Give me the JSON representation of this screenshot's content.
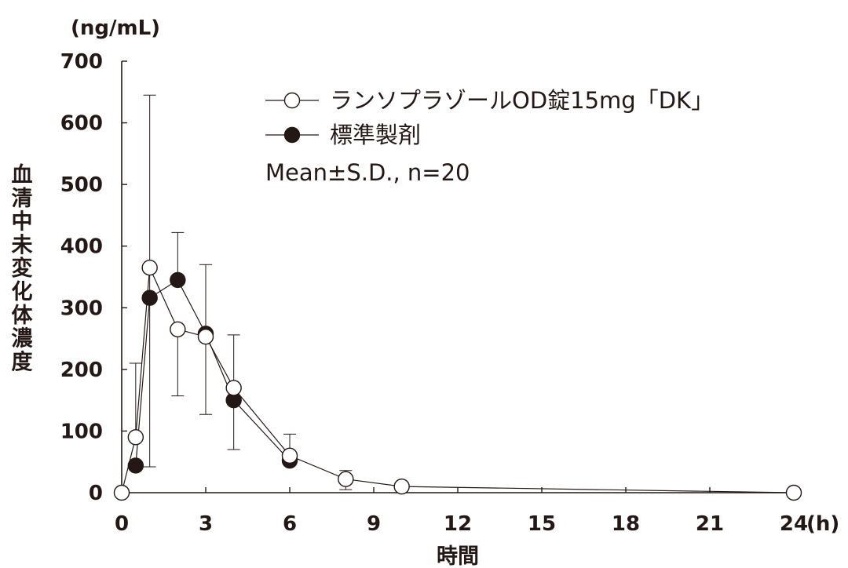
{
  "chart_data": {
    "type": "line",
    "y_unit": "(ng/mL)",
    "ylabel": "血清中未変化体濃度",
    "xlabel": "時間",
    "x_unit": "(h)",
    "ylim": [
      0,
      700
    ],
    "yticks": [
      0,
      100,
      200,
      300,
      400,
      500,
      600,
      700
    ],
    "xlim": [
      0,
      24
    ],
    "xticks": [
      0,
      3,
      6,
      9,
      12,
      15,
      18,
      21,
      24
    ],
    "grid": false,
    "legend_position": "top-right",
    "annotation": "Mean±S.D., n=20",
    "series": [
      {
        "name": "ランソプラゾールOD錠15mg「DK」",
        "marker": "open-circle",
        "color": "#231815",
        "x": [
          0,
          0.5,
          1,
          2,
          3,
          4,
          6,
          8,
          10,
          24
        ],
        "y": [
          0,
          90,
          365,
          265,
          253,
          170,
          60,
          22,
          10,
          0
        ],
        "error_upper": [
          null,
          210,
          645,
          null,
          370,
          256,
          95,
          36,
          null,
          null
        ],
        "error_lower": [
          null,
          null,
          42,
          157,
          127,
          70,
          null,
          5,
          0,
          null
        ]
      },
      {
        "name": "標準製剤",
        "marker": "filled-circle",
        "color": "#231815",
        "x": [
          0.5,
          1,
          2,
          3,
          4,
          6
        ],
        "y": [
          44,
          316,
          345,
          258,
          150,
          52
        ],
        "error_upper": [
          null,
          null,
          422,
          null,
          null,
          null
        ],
        "error_lower": [
          null,
          null,
          null,
          null,
          null,
          null
        ]
      }
    ]
  }
}
